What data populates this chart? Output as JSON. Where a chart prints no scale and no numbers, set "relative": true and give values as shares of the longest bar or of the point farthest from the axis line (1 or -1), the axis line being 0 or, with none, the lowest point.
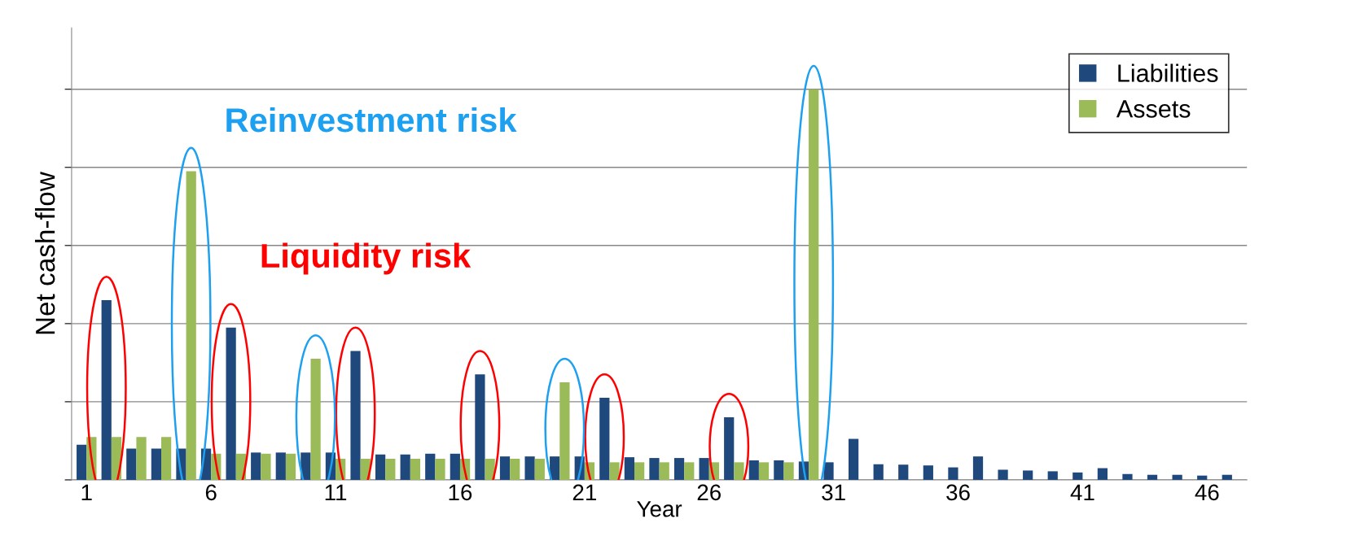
{
  "chart_data": {
    "type": "bar",
    "relative": true,
    "xlabel": "Year",
    "ylabel": "Net cash-flow",
    "categories": [
      "1",
      null,
      null,
      null,
      null,
      "6",
      null,
      null,
      null,
      null,
      "11",
      null,
      null,
      null,
      null,
      "16",
      null,
      null,
      null,
      null,
      "21",
      null,
      null,
      null,
      null,
      "26",
      null,
      null,
      null,
      null,
      "31",
      null,
      null,
      null,
      null,
      "36",
      null,
      null,
      null,
      null,
      "41",
      null,
      null,
      null,
      null,
      "46",
      null
    ],
    "series": [
      {
        "name": "Liabilities",
        "color": "#1f497d",
        "values": [
          0.09,
          0.46,
          0.08,
          0.08,
          0.08,
          0.08,
          0.39,
          0.07,
          0.07,
          0.07,
          0.07,
          0.33,
          0.065,
          0.065,
          0.067,
          0.067,
          0.27,
          0.06,
          0.06,
          0.06,
          0.06,
          0.21,
          0.058,
          0.056,
          0.056,
          0.056,
          0.16,
          0.05,
          0.05,
          0.047,
          0.045,
          0.105,
          0.04,
          0.039,
          0.037,
          0.032,
          0.06,
          0.026,
          0.024,
          0.022,
          0.019,
          0.03,
          0.015,
          0.013,
          0.013,
          0.011,
          0.013
        ]
      },
      {
        "name": "Assets",
        "color": "#9bbb59",
        "values": [
          0.11,
          0.11,
          0.11,
          0.11,
          0.79,
          0.067,
          0.067,
          0.067,
          0.067,
          0.31,
          0.054,
          0.054,
          0.054,
          0.054,
          0.054,
          0.054,
          0.054,
          0.054,
          0.054,
          0.25,
          0.045,
          0.045,
          0.045,
          0.045,
          0.045,
          0.045,
          0.045,
          0.045,
          0.045,
          1.0,
          null,
          null,
          null,
          null,
          null,
          null,
          null,
          null,
          null,
          null,
          null,
          null,
          null,
          null,
          null,
          null,
          null
        ]
      }
    ],
    "annotations": [
      "Reinvestment risk",
      "Liquidity risk"
    ],
    "grid": "y",
    "legend": "top right"
  }
}
